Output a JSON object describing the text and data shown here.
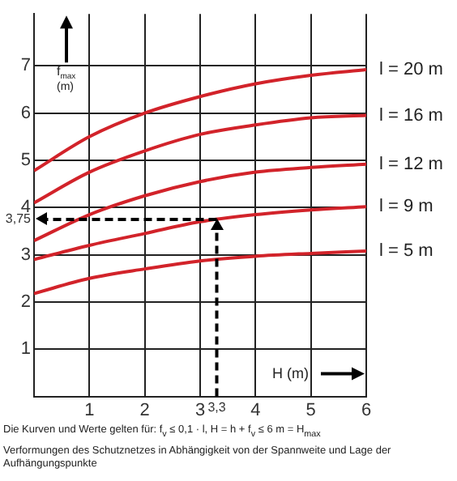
{
  "chart_data": {
    "type": "line",
    "xlabel": "H (m)",
    "ylabel": "f$_{max}$ (m)",
    "x": [
      0,
      1,
      2,
      3,
      4,
      5,
      6
    ],
    "series": [
      {
        "name": "l = 20 m",
        "color": "#d2232a",
        "values": [
          4.78,
          5.5,
          6.0,
          6.35,
          6.62,
          6.8,
          6.92
        ]
      },
      {
        "name": "l = 16 m",
        "color": "#d2232a",
        "values": [
          4.1,
          4.75,
          5.2,
          5.55,
          5.75,
          5.9,
          5.95
        ]
      },
      {
        "name": "l = 12 m",
        "color": "#d2232a",
        "values": [
          3.3,
          3.85,
          4.25,
          4.55,
          4.75,
          4.85,
          4.92
        ]
      },
      {
        "name": "l = 9 m",
        "color": "#d2232a",
        "values": [
          2.9,
          3.2,
          3.45,
          3.7,
          3.85,
          3.95,
          4.02
        ]
      },
      {
        "name": "l = 5 m",
        "color": "#d2232a",
        "values": [
          2.18,
          2.5,
          2.7,
          2.87,
          2.97,
          3.03,
          3.08
        ]
      }
    ],
    "xlim": [
      0,
      6
    ],
    "ylim": [
      0,
      8.1
    ],
    "xticks": [
      1,
      2,
      3,
      {
        "value": 3.3,
        "label": "3,3"
      },
      4,
      5,
      6
    ],
    "yticks": [
      1,
      2,
      3,
      {
        "value": 3.75,
        "label": "3,75"
      },
      4,
      5,
      6,
      7
    ],
    "ref_lines": [
      {
        "axis": "x",
        "value": 3.3,
        "line_style": "dashed",
        "color": "#000000"
      },
      {
        "axis": "y",
        "value": 3.75,
        "line_style": "dashed",
        "color": "#000000"
      }
    ],
    "grid": true,
    "legend": false,
    "marker": "none",
    "line_style": "solid",
    "annotations": [
      "Die Kurven und Werte gelten für: f$_{v}$ ≤ 0,1 · l,   H = h + f$_{v}$ ≤ 6 m = H$_{max}$",
      "Verformungen des Schutznetzes in Abhängigkeit von der Spannweite und Lage der Aufhängungspunkte"
    ]
  }
}
